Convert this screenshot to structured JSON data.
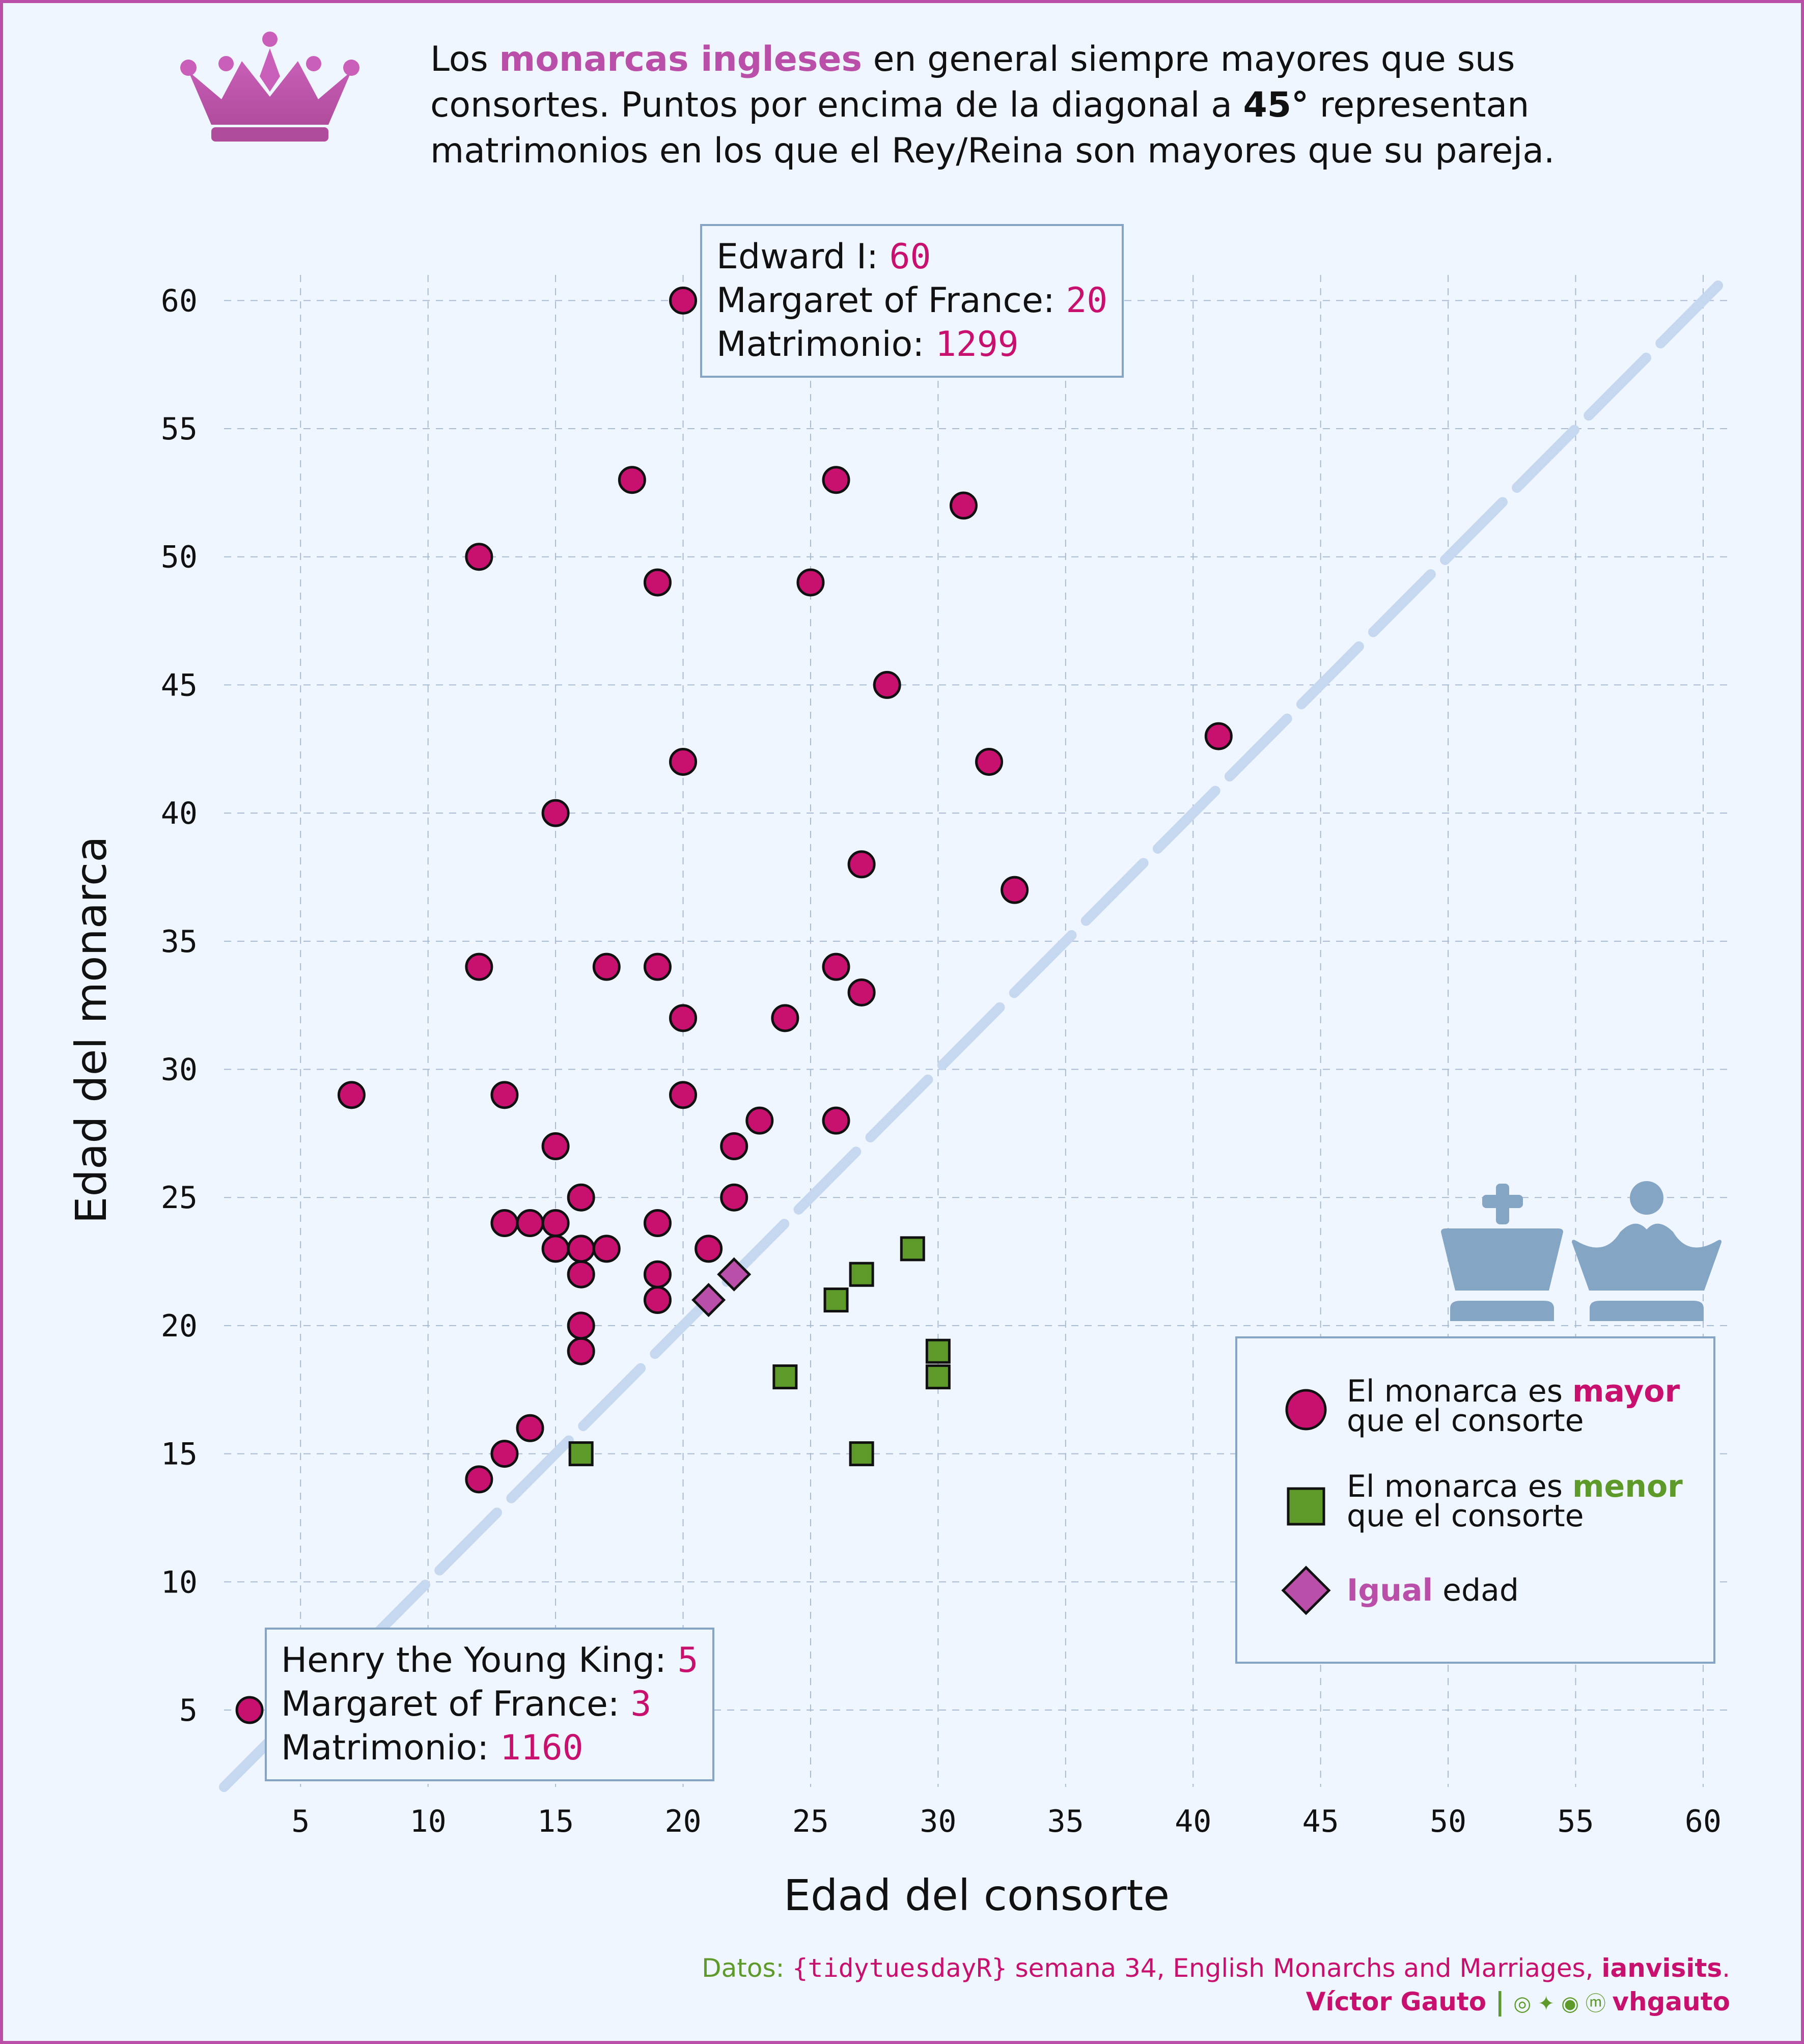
{
  "title": {
    "part1": "Los ",
    "highlight": "monarcas ingleses",
    "part2": " en general siempre mayores que sus consortes. Puntos por encima de la diagonal a ",
    "bold": "45°",
    "part3": " representan matrimonios en los que el Rey/Reina son mayores que su pareja."
  },
  "colors": {
    "mayor": "#C8106E",
    "menor": "#5E9A2A",
    "igual": "#B94FA8",
    "diagonal": "#C5D8F0",
    "grid": "#A9BBD1",
    "pieces": "#85A5C5"
  },
  "icons": {
    "crown": "crown-icon",
    "king": "king-chess-icon",
    "queen": "queen-chess-icon"
  },
  "chart_data": {
    "type": "scatter",
    "xlabel": "Edad del consorte",
    "ylabel": "Edad del monarca",
    "xlim": [
      2,
      61
    ],
    "ylim": [
      2,
      61
    ],
    "xticks": [
      5,
      10,
      15,
      20,
      25,
      30,
      35,
      40,
      45,
      50,
      55,
      60
    ],
    "yticks": [
      5,
      10,
      15,
      20,
      25,
      30,
      35,
      40,
      45,
      50,
      55,
      60
    ],
    "diagonal": "y = x",
    "series": [
      {
        "name": "mayor",
        "shape": "circle",
        "points": [
          [
            20,
            60
          ],
          [
            18,
            53
          ],
          [
            26,
            53
          ],
          [
            31,
            52
          ],
          [
            12,
            50
          ],
          [
            19,
            49
          ],
          [
            25,
            49
          ],
          [
            28,
            45
          ],
          [
            41,
            43
          ],
          [
            20,
            42
          ],
          [
            32,
            42
          ],
          [
            15,
            40
          ],
          [
            27,
            38
          ],
          [
            33,
            37
          ],
          [
            12,
            34
          ],
          [
            17,
            34
          ],
          [
            19,
            34
          ],
          [
            26,
            34
          ],
          [
            27,
            33
          ],
          [
            20,
            32
          ],
          [
            24,
            32
          ],
          [
            7,
            29
          ],
          [
            13,
            29
          ],
          [
            20,
            29
          ],
          [
            23,
            28
          ],
          [
            26,
            28
          ],
          [
            15,
            27
          ],
          [
            22,
            27
          ],
          [
            16,
            25
          ],
          [
            22,
            25
          ],
          [
            13,
            24
          ],
          [
            14,
            24
          ],
          [
            15,
            24
          ],
          [
            19,
            24
          ],
          [
            15,
            23
          ],
          [
            16,
            23
          ],
          [
            17,
            23
          ],
          [
            21,
            23
          ],
          [
            16,
            22
          ],
          [
            19,
            22
          ],
          [
            19,
            21
          ],
          [
            16,
            20
          ],
          [
            16,
            19
          ],
          [
            14,
            16
          ],
          [
            13,
            15
          ],
          [
            12,
            14
          ],
          [
            3,
            5
          ]
        ]
      },
      {
        "name": "menor",
        "shape": "square",
        "points": [
          [
            29,
            23
          ],
          [
            27,
            22
          ],
          [
            26,
            21
          ],
          [
            30,
            19
          ],
          [
            30,
            18
          ],
          [
            24,
            18
          ],
          [
            16,
            15
          ],
          [
            27,
            15
          ]
        ]
      },
      {
        "name": "igual",
        "shape": "diamond",
        "points": [
          [
            22,
            22
          ],
          [
            21,
            21
          ]
        ]
      }
    ]
  },
  "callout_top": {
    "monarch_label": "Edward I: ",
    "monarch_age": "60",
    "consort_label": "Margaret of France: ",
    "consort_age": "20",
    "marriage_label": "Matrimonio: ",
    "year": "1299"
  },
  "callout_bottom": {
    "monarch_label": "Henry the Young King: ",
    "monarch_age": "5",
    "consort_label": "Margaret of France: ",
    "consort_age": "3",
    "marriage_label": "Matrimonio: ",
    "year": "1160"
  },
  "legend": {
    "mayor_pre": "El monarca es ",
    "mayor_word": "mayor",
    "mayor_post": "que el consorte",
    "menor_pre": "El monarca es ",
    "menor_word": "menor",
    "menor_post": "que el consorte",
    "igual_word": "Igual",
    "igual_post": " edad"
  },
  "caption": {
    "pre": "Datos: ",
    "pkg": "{tidytuesdayR}",
    "mid": " semana 34, English Monarchs and Marriages, ",
    "source": "ianvisits",
    "end": "."
  },
  "author": {
    "name": "Víctor Gauto",
    "sep": " | ",
    "icons": "◎ ✦ ◉ ⓜ ",
    "handle": "vhgauto"
  }
}
